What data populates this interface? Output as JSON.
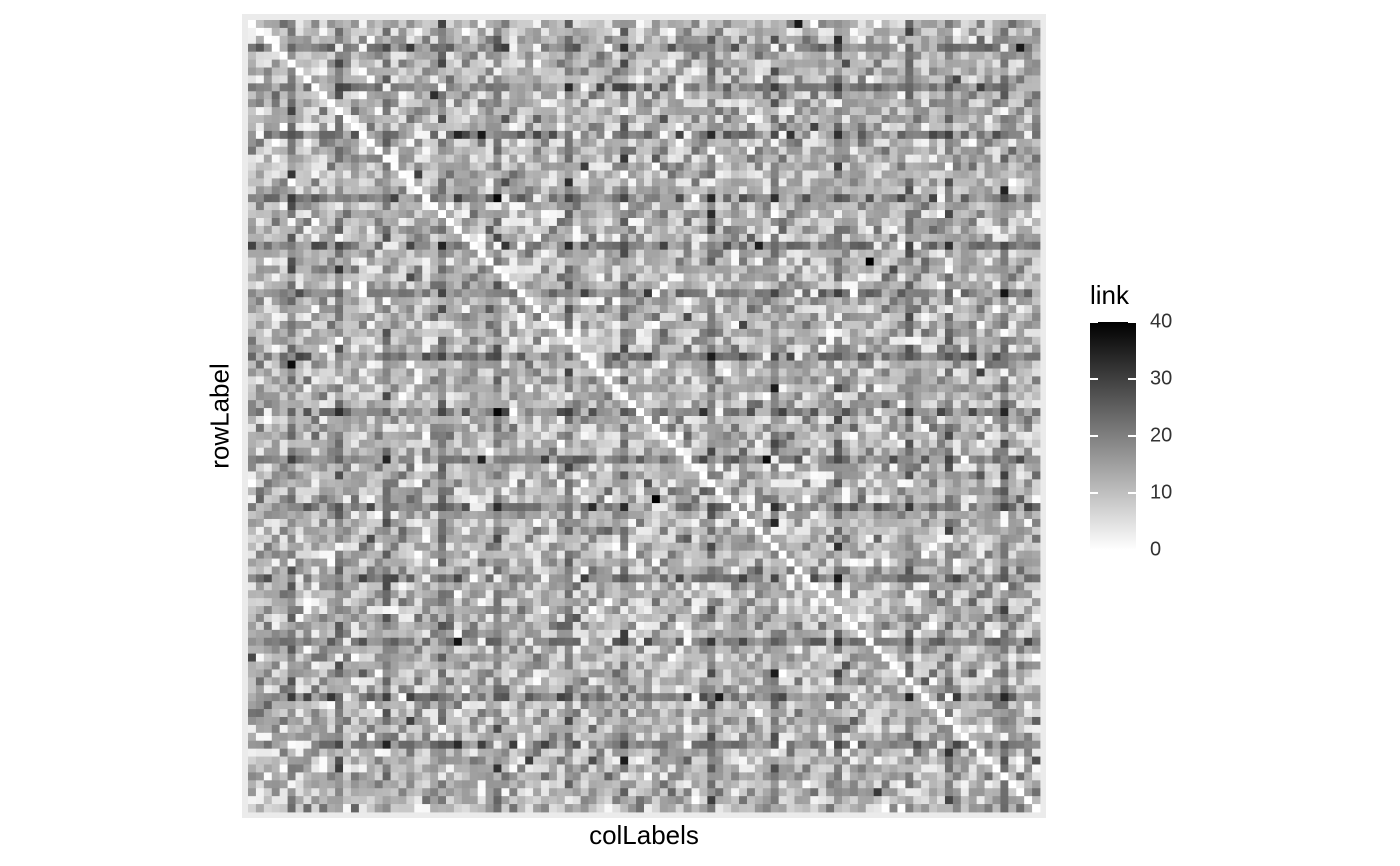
{
  "chart_data": {
    "type": "heatmap",
    "title": "",
    "xlabel": "colLabels",
    "ylabel": "rowLabel",
    "x_tick_labels": [],
    "y_tick_labels": [],
    "grid": false,
    "n_rows": 100,
    "n_cols": 100,
    "value_range": [
      0,
      40
    ],
    "colorscale": {
      "low": "#ffffff",
      "high": "#000000"
    },
    "panel_background": "#ebebeb",
    "legend": {
      "title": "link",
      "placement": "right",
      "ticks": [
        0,
        10,
        20,
        30,
        40
      ],
      "tick_labels": [
        "0",
        "10",
        "20",
        "30",
        "40"
      ]
    },
    "notable_cells": [
      {
        "row": 14,
        "col": 29,
        "value": 36
      },
      {
        "row": 30,
        "col": 78,
        "value": 40
      },
      {
        "row": 60,
        "col": 51,
        "value": 40
      },
      {
        "row": 63,
        "col": 66,
        "value": 34
      },
      {
        "row": 0,
        "col": 69,
        "value": 36
      },
      {
        "row": 88,
        "col": 20,
        "value": 30
      }
    ]
  }
}
